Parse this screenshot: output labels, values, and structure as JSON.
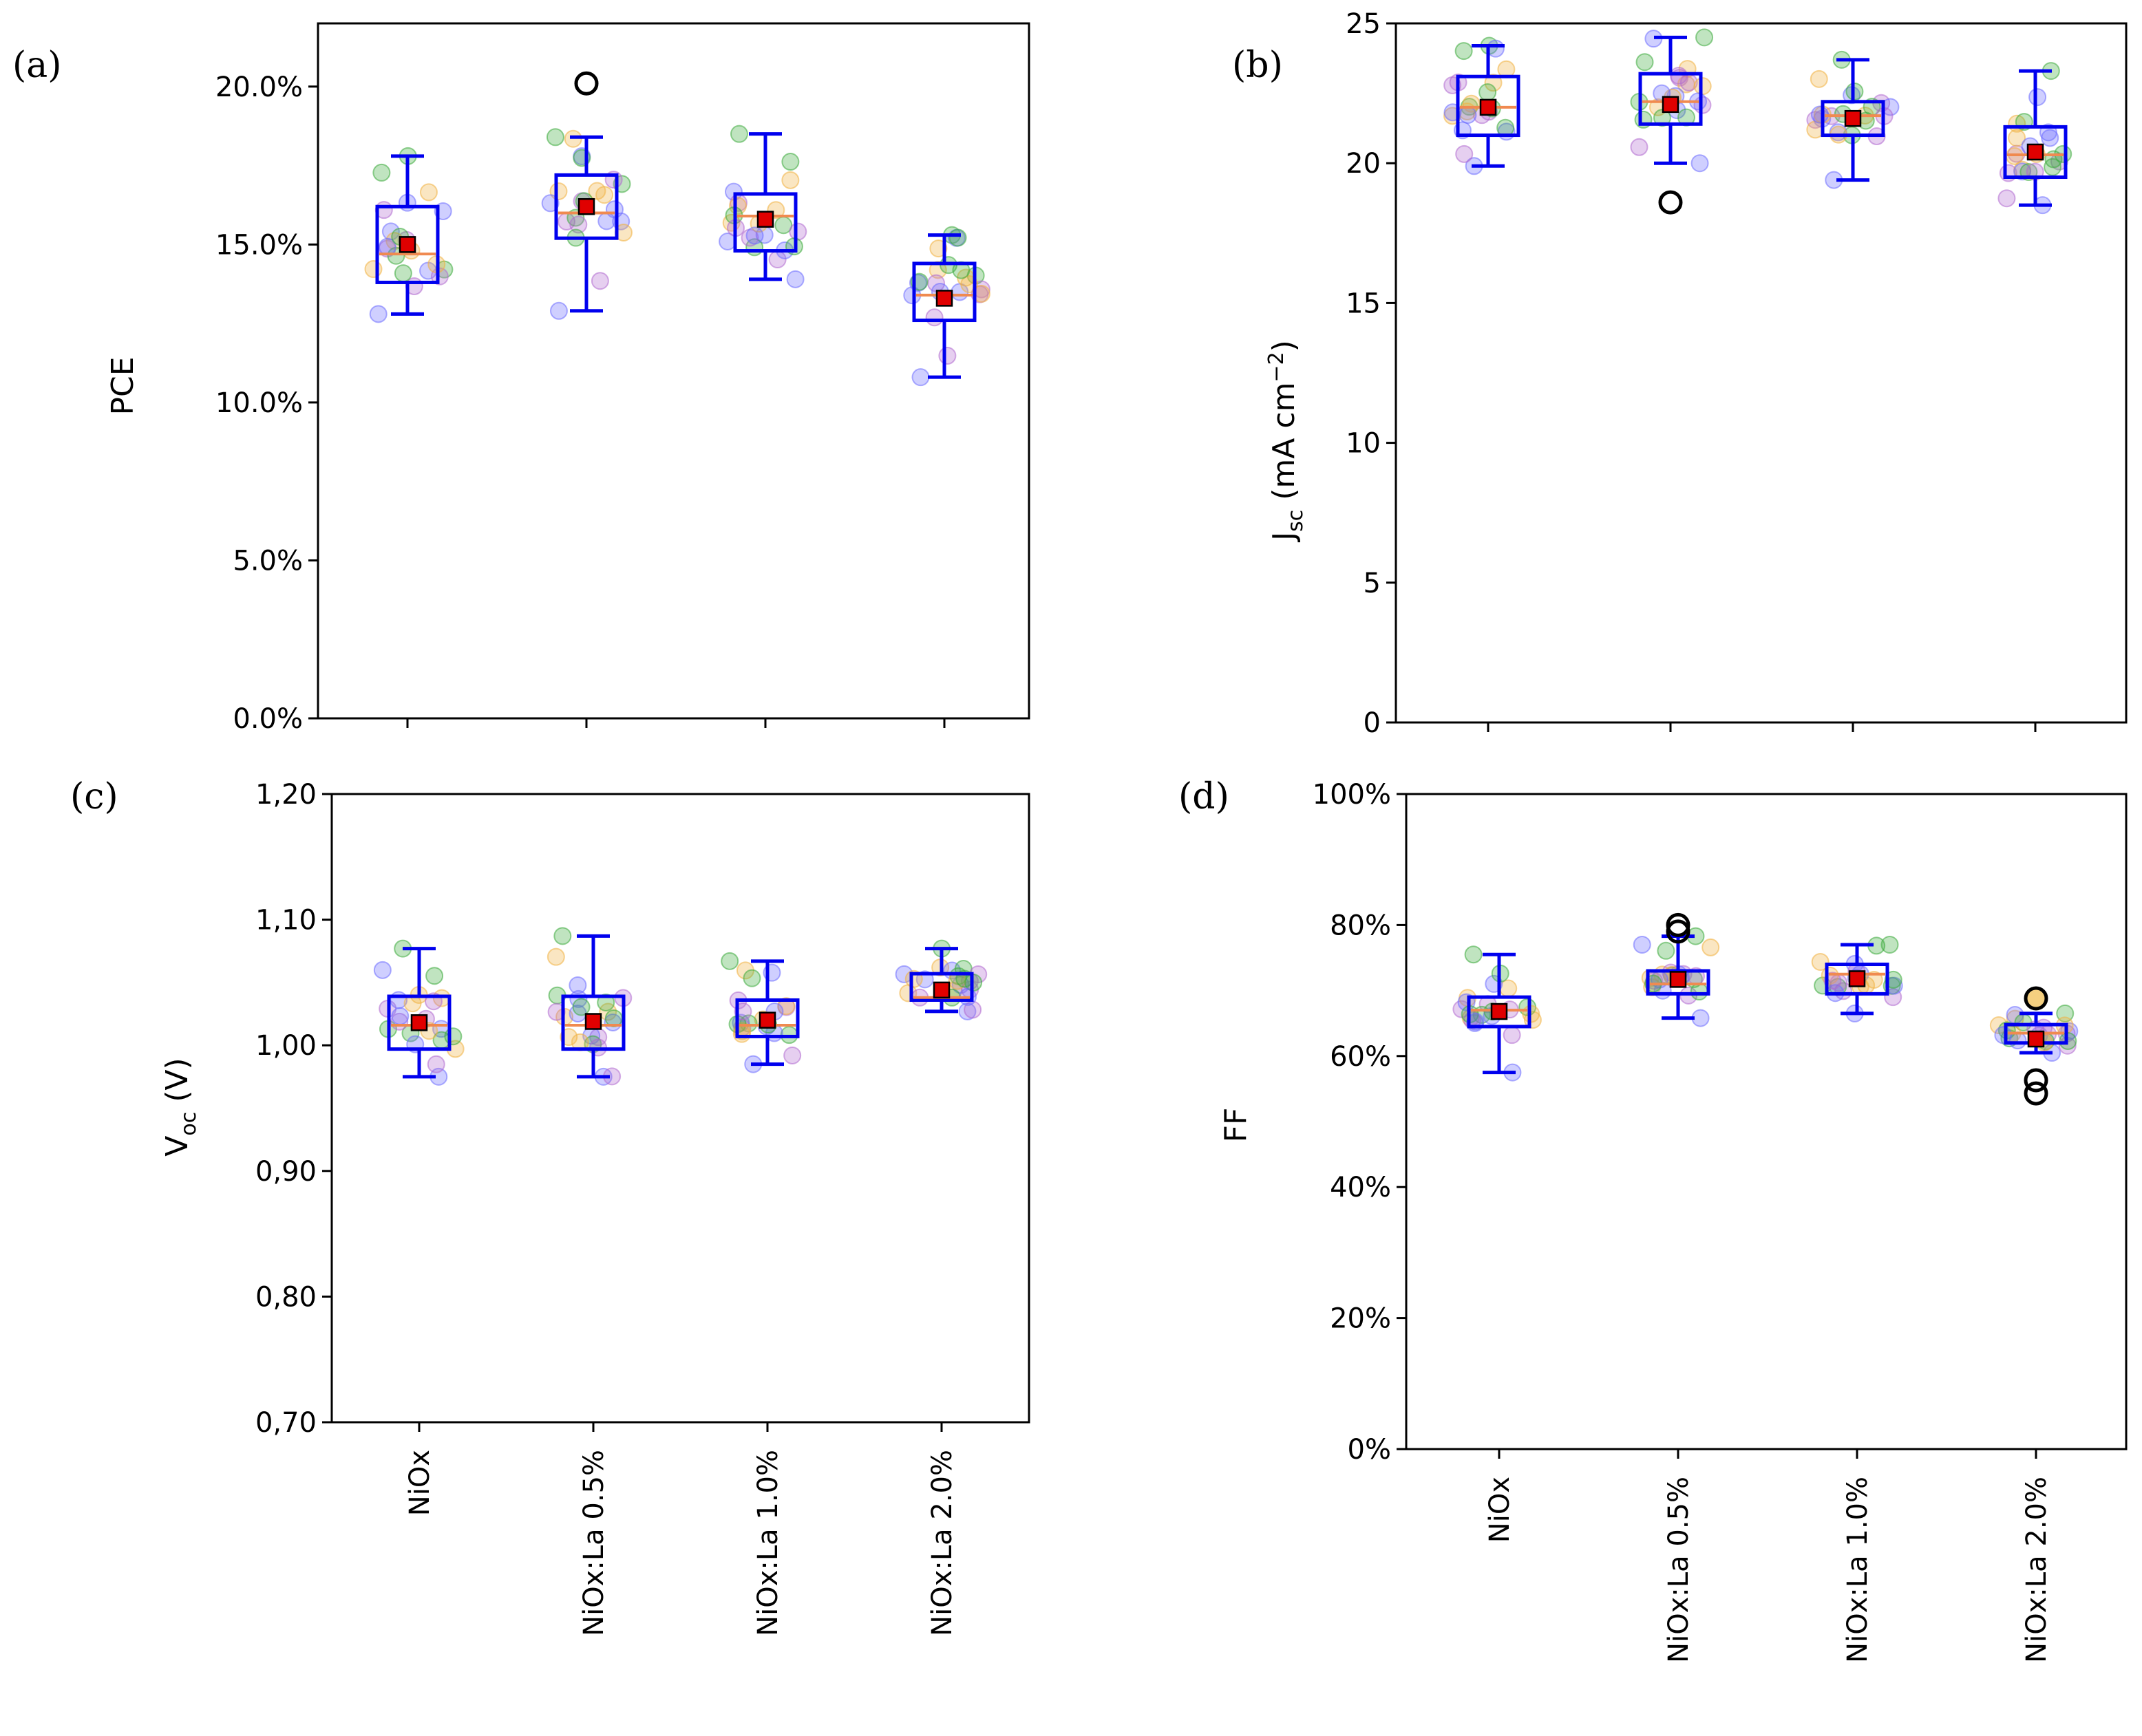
{
  "categories": [
    "NiOx",
    "NiOx:La 0.5%",
    "NiOx:La 1.0%",
    "NiOx:La 2.0%"
  ],
  "colors": {
    "box": "#0000ee",
    "median": "#f08a50",
    "mean_fill": "#e00000",
    "points": [
      "#6b6bff",
      "#3aaa3a",
      "#b06ad0",
      "#f0b040"
    ],
    "outlier": "#000000",
    "outlier_highlight": "#f5d080"
  },
  "chart_data": [
    {
      "type": "box",
      "panel_label": "(a)",
      "ylabel": "PCE",
      "ylim": [
        0,
        22
      ],
      "yticks": [
        0,
        5,
        10,
        15,
        20
      ],
      "ytick_labels": [
        "0.0%",
        "5.0%",
        "10.0%",
        "15.0%",
        "20.0%"
      ],
      "categories": [
        "NiOx",
        "NiOx:La 0.5%",
        "NiOx:La 1.0%",
        "NiOx:La 2.0%"
      ],
      "boxes": [
        {
          "whislo": 12.8,
          "q1": 13.8,
          "med": 14.7,
          "q3": 16.2,
          "whishi": 17.8,
          "mean": 15.0,
          "fliers": []
        },
        {
          "whislo": 12.9,
          "q1": 15.2,
          "med": 16.0,
          "q3": 17.2,
          "whishi": 18.4,
          "mean": 16.2,
          "fliers": [
            20.1
          ]
        },
        {
          "whislo": 13.9,
          "q1": 14.8,
          "med": 15.9,
          "q3": 16.6,
          "whishi": 18.5,
          "mean": 15.8,
          "fliers": []
        },
        {
          "whislo": 10.8,
          "q1": 12.6,
          "med": 13.4,
          "q3": 14.4,
          "whishi": 15.3,
          "mean": 13.3,
          "fliers": []
        }
      ]
    },
    {
      "type": "box",
      "panel_label": "(b)",
      "ylabel": "J",
      "ylabel_sub": "sc",
      "ylabel_unit": " (mA cm",
      "ylabel_sup": "−2",
      "ylabel_end": ")",
      "ylim": [
        0,
        25
      ],
      "yticks": [
        0,
        5,
        10,
        15,
        20,
        25
      ],
      "ytick_labels": [
        "0",
        "5",
        "10",
        "15",
        "20",
        "25"
      ],
      "categories": [
        "NiOx",
        "NiOx:La 0.5%",
        "NiOx:La 1.0%",
        "NiOx:La 2.0%"
      ],
      "boxes": [
        {
          "whislo": 19.9,
          "q1": 21.0,
          "med": 22.0,
          "q3": 23.1,
          "whishi": 24.2,
          "mean": 22.0,
          "fliers": []
        },
        {
          "whislo": 20.0,
          "q1": 21.4,
          "med": 22.2,
          "q3": 23.2,
          "whishi": 24.5,
          "mean": 22.1,
          "fliers": [
            18.6
          ]
        },
        {
          "whislo": 19.4,
          "q1": 21.0,
          "med": 21.7,
          "q3": 22.2,
          "whishi": 23.7,
          "mean": 21.6,
          "fliers": []
        },
        {
          "whislo": 18.5,
          "q1": 19.5,
          "med": 20.3,
          "q3": 21.3,
          "whishi": 23.3,
          "mean": 20.4,
          "fliers": []
        }
      ]
    },
    {
      "type": "box",
      "panel_label": "(c)",
      "ylabel": "V",
      "ylabel_sub": "oc",
      "ylabel_unit": " (V)",
      "ylim": [
        0.7,
        1.2
      ],
      "yticks": [
        0.7,
        0.8,
        0.9,
        1.0,
        1.1,
        1.2
      ],
      "ytick_labels": [
        "0,70",
        "0,80",
        "0,90",
        "1,00",
        "1,10",
        "1,20"
      ],
      "categories": [
        "NiOx",
        "NiOx:La 0.5%",
        "NiOx:La 1.0%",
        "NiOx:La 2.0%"
      ],
      "boxes": [
        {
          "whislo": 0.975,
          "q1": 0.997,
          "med": 1.016,
          "q3": 1.039,
          "whishi": 1.077,
          "mean": 1.018,
          "fliers": []
        },
        {
          "whislo": 0.975,
          "q1": 0.997,
          "med": 1.016,
          "q3": 1.039,
          "whishi": 1.087,
          "mean": 1.019,
          "fliers": []
        },
        {
          "whislo": 0.985,
          "q1": 1.007,
          "med": 1.016,
          "q3": 1.036,
          "whishi": 1.067,
          "mean": 1.02,
          "fliers": []
        },
        {
          "whislo": 1.027,
          "q1": 1.036,
          "med": 1.038,
          "q3": 1.057,
          "whishi": 1.077,
          "mean": 1.044,
          "fliers": []
        }
      ]
    },
    {
      "type": "box",
      "panel_label": "(d)",
      "ylabel": "FF",
      "ylim": [
        0,
        100
      ],
      "yticks": [
        0,
        20,
        40,
        60,
        80,
        100
      ],
      "ytick_labels": [
        "0%",
        "20%",
        "40%",
        "60%",
        "80%",
        "100%"
      ],
      "categories": [
        "NiOx",
        "NiOx:La 0.5%",
        "NiOx:La 1.0%",
        "NiOx:La 2.0%"
      ],
      "boxes": [
        {
          "whislo": 57.5,
          "q1": 64.5,
          "med": 67.0,
          "q3": 69.0,
          "whishi": 75.5,
          "mean": 66.8,
          "fliers": []
        },
        {
          "whislo": 65.8,
          "q1": 69.5,
          "med": 71.0,
          "q3": 73.0,
          "whishi": 78.3,
          "mean": 71.7,
          "fliers": [
            80.0,
            79.0
          ]
        },
        {
          "whislo": 66.5,
          "q1": 69.5,
          "med": 72.5,
          "q3": 74.0,
          "whishi": 77.0,
          "mean": 71.8,
          "fliers": []
        },
        {
          "whislo": 60.5,
          "q1": 62.0,
          "med": 63.5,
          "q3": 64.8,
          "whishi": 66.5,
          "mean": 62.6,
          "fliers": [
            68.8,
            56.3,
            54.3
          ]
        }
      ]
    }
  ]
}
